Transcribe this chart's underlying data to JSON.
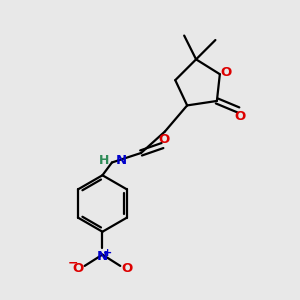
{
  "background_color": "#e8e8e8",
  "bond_color": "#000000",
  "atom_colors": {
    "O": "#dd0000",
    "N": "#0000cc",
    "H": "#2e8b57",
    "C": "#000000"
  },
  "figsize": [
    3.0,
    3.0
  ],
  "dpi": 100
}
